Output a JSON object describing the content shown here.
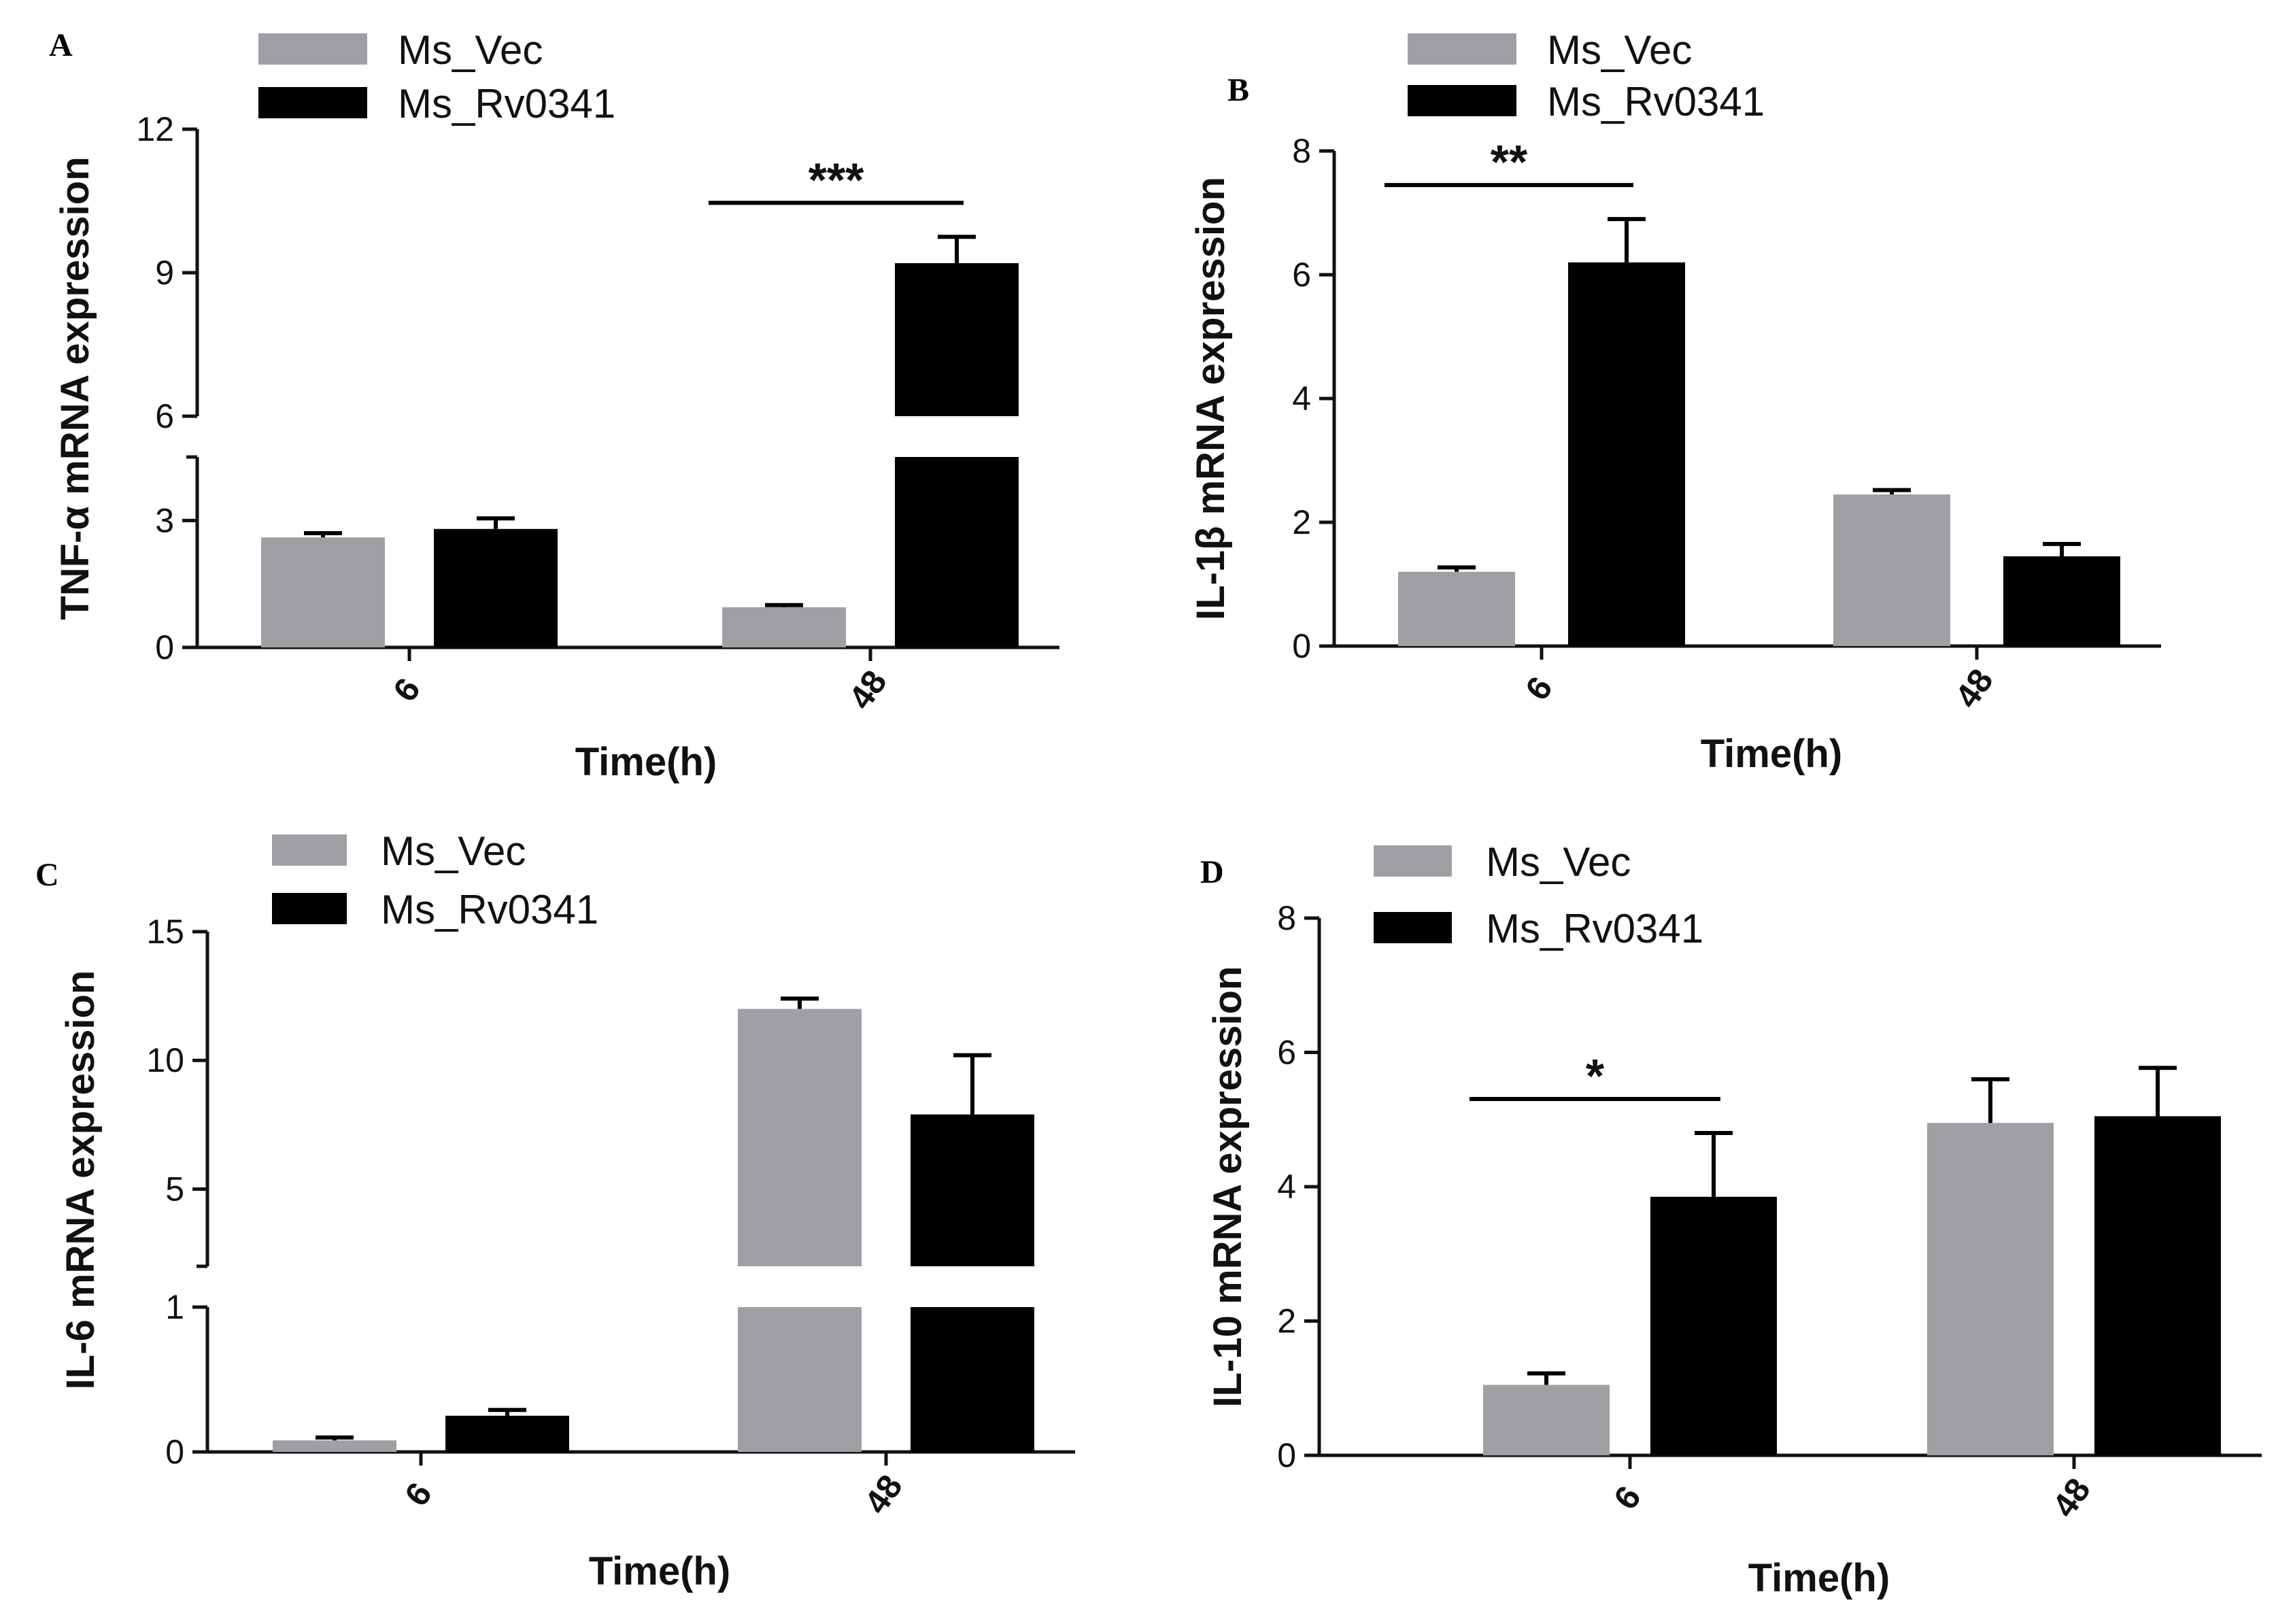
{
  "colors": {
    "ms_vec": "#a0a0a4",
    "ms_rv0341": "#000000",
    "axis": "#111111"
  },
  "chart_data": [
    {
      "type": "bar",
      "panel": "A",
      "ylabel": "TNF-α mRNA expression",
      "xlabel": "Time(h)",
      "categories": [
        "6",
        "48"
      ],
      "series": [
        {
          "name": "Ms_Vec",
          "values": [
            2.6,
            0.95
          ],
          "errors": [
            0.1,
            0.05
          ]
        },
        {
          "name": "Ms_Rv0341",
          "values": [
            2.8,
            9.2
          ],
          "errors": [
            0.25,
            0.55
          ]
        }
      ],
      "y_axis_break": true,
      "y_segments": [
        {
          "range": [
            0,
            4.5
          ],
          "ticks": [
            "0",
            "3"
          ]
        },
        {
          "range": [
            6,
            12
          ],
          "ticks": [
            "6",
            "9",
            "12"
          ]
        }
      ],
      "significance": {
        "label": "***",
        "category": "48"
      }
    },
    {
      "type": "bar",
      "panel": "B",
      "ylabel": "IL-1β mRNA expression",
      "xlabel": "Time(h)",
      "categories": [
        "6",
        "48"
      ],
      "series": [
        {
          "name": "Ms_Vec",
          "values": [
            1.2,
            2.45
          ],
          "errors": [
            0.07,
            0.07
          ]
        },
        {
          "name": "Ms_Rv0341",
          "values": [
            6.2,
            1.45
          ],
          "errors": [
            0.7,
            0.2
          ]
        }
      ],
      "y_axis_break": false,
      "y_segments": [
        {
          "range": [
            0,
            8
          ],
          "ticks": [
            "0",
            "2",
            "4",
            "6",
            "8"
          ]
        }
      ],
      "significance": {
        "label": "**",
        "category": "6"
      }
    },
    {
      "type": "bar",
      "panel": "C",
      "ylabel": "IL-6 mRNA expression",
      "xlabel": "Time(h)",
      "categories": [
        "6",
        "48"
      ],
      "series": [
        {
          "name": "Ms_Vec",
          "values": [
            0.08,
            12
          ],
          "errors": [
            0.02,
            0.4
          ]
        },
        {
          "name": "Ms_Rv0341",
          "values": [
            0.25,
            7.9
          ],
          "errors": [
            0.04,
            2.3
          ]
        }
      ],
      "y_axis_break": true,
      "y_segments": [
        {
          "range": [
            0,
            1
          ],
          "ticks": [
            "0",
            "1"
          ]
        },
        {
          "range": [
            2,
            15
          ],
          "ticks": [
            "5",
            "10",
            "15"
          ]
        }
      ],
      "significance": null
    },
    {
      "type": "bar",
      "panel": "D",
      "ylabel": "IL-10 mRNA expression",
      "xlabel": "Time(h)",
      "categories": [
        "6",
        "48"
      ],
      "series": [
        {
          "name": "Ms_Vec",
          "values": [
            1.05,
            4.95
          ],
          "errors": [
            0.17,
            0.65
          ]
        },
        {
          "name": "Ms_Rv0341",
          "values": [
            3.85,
            5.05
          ],
          "errors": [
            0.95,
            0.72
          ]
        }
      ],
      "y_axis_break": false,
      "y_segments": [
        {
          "range": [
            0,
            8
          ],
          "ticks": [
            "0",
            "2",
            "4",
            "6",
            "8"
          ]
        }
      ],
      "significance": {
        "label": "*",
        "category": "6"
      }
    }
  ]
}
